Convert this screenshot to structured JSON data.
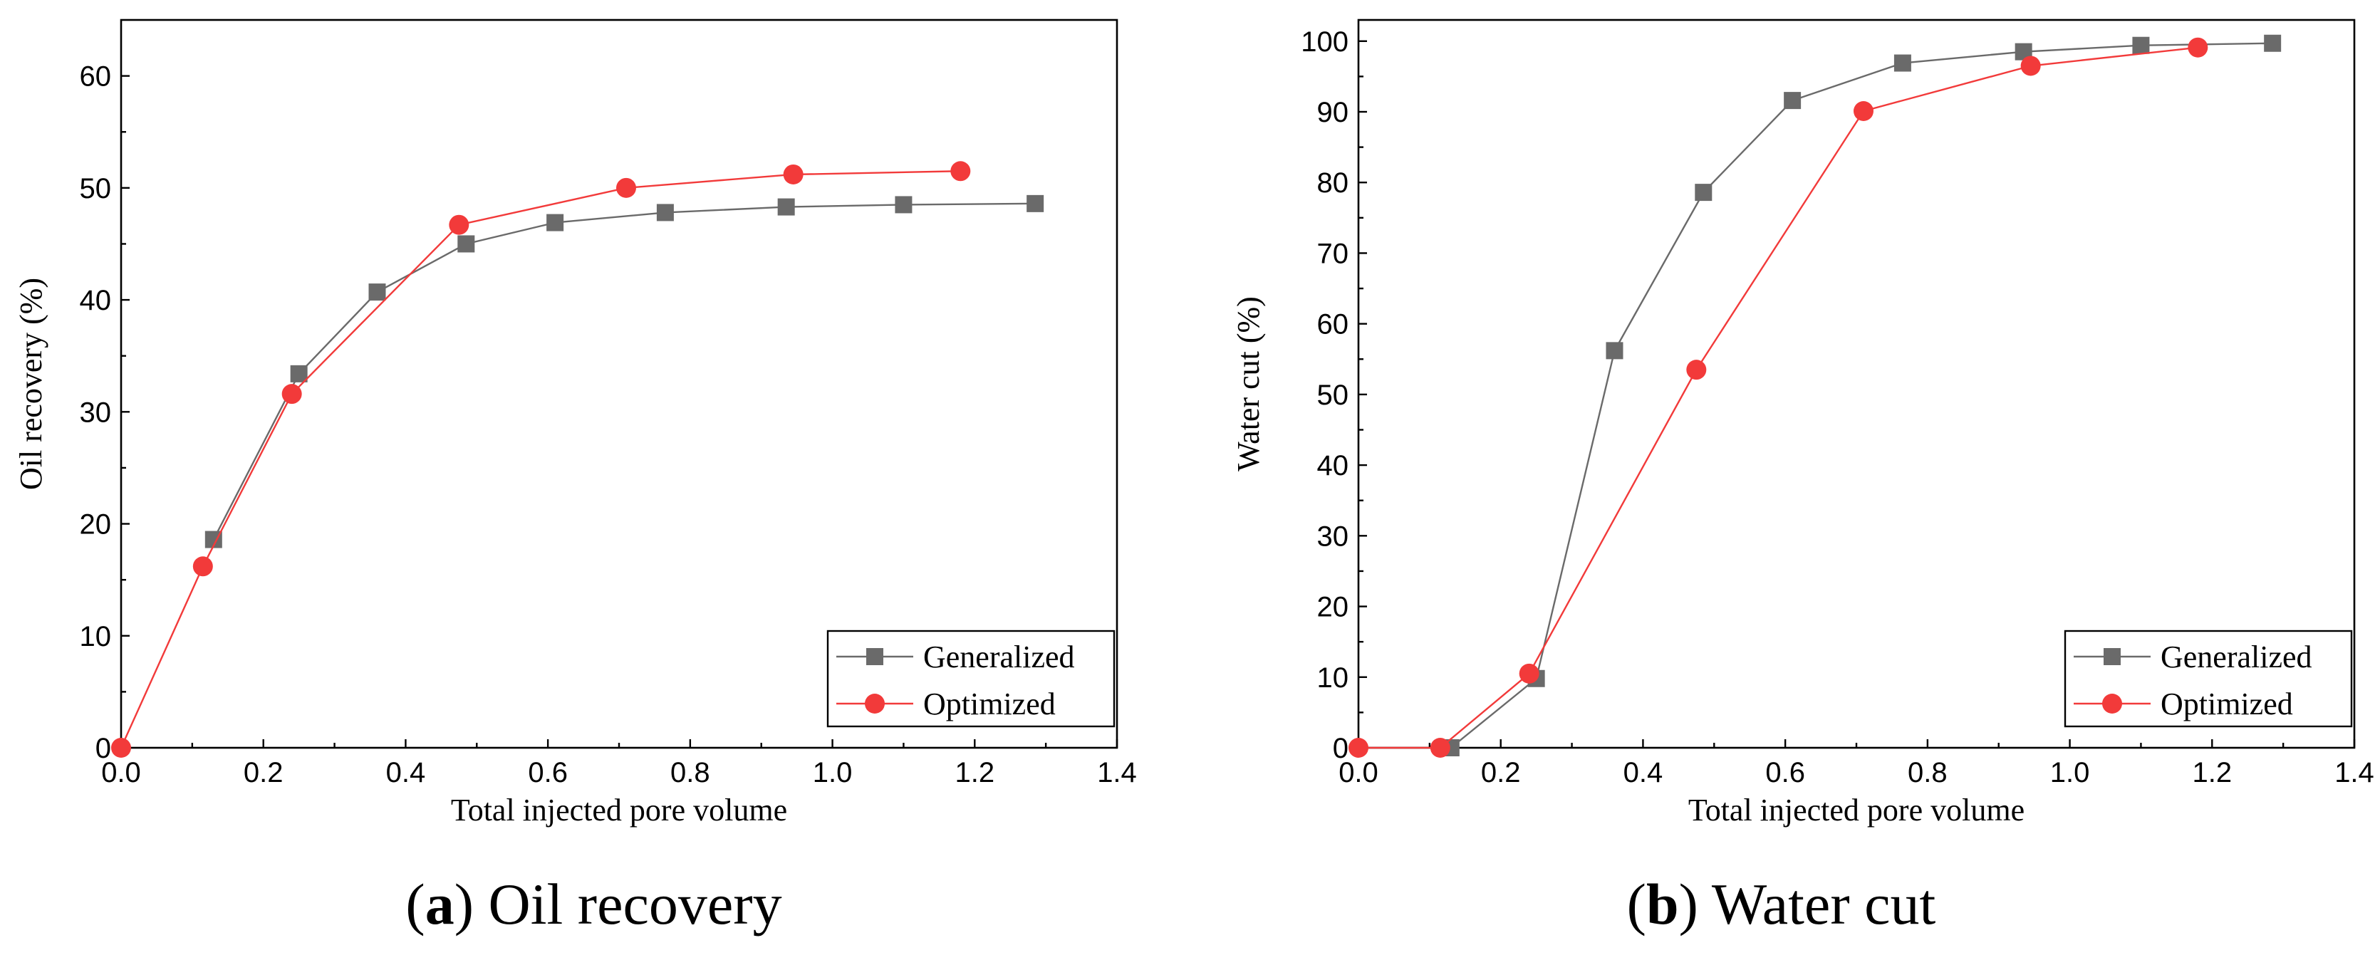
{
  "chart_data": [
    {
      "type": "line",
      "panel_label": "a",
      "caption": "Oil recovery",
      "title": "",
      "xlabel": "Total injected pore volume",
      "ylabel": "Oil recovery (%)",
      "xlim": [
        0,
        1.4
      ],
      "ylim": [
        0,
        65
      ],
      "xticks": [
        0.0,
        0.2,
        0.4,
        0.6,
        0.8,
        1.0,
        1.2,
        1.4
      ],
      "xtick_labels": [
        "0.0",
        "0.2",
        "0.4",
        "0.6",
        "0.8",
        "1.0",
        "1.2",
        "1.4"
      ],
      "yticks": [
        0,
        10,
        20,
        30,
        40,
        50,
        60
      ],
      "ytick_labels": [
        "0",
        "10",
        "20",
        "30",
        "40",
        "50",
        "60"
      ],
      "legend_position": "bottom-right",
      "grid": false,
      "series": [
        {
          "name": "Generalized",
          "color": "#6a6a6a",
          "marker": "square",
          "x": [
            0.13,
            0.25,
            0.36,
            0.485,
            0.61,
            0.765,
            0.935,
            1.1,
            1.285
          ],
          "y": [
            18.6,
            33.4,
            40.7,
            45.0,
            46.9,
            47.8,
            48.3,
            48.5,
            48.6
          ]
        },
        {
          "name": "Optimized",
          "color": "#f23a3a",
          "marker": "circle",
          "x": [
            0.0,
            0.115,
            0.24,
            0.475,
            0.71,
            0.945,
            1.18
          ],
          "y": [
            0.0,
            16.2,
            31.6,
            46.7,
            50.0,
            51.2,
            51.5
          ]
        }
      ]
    },
    {
      "type": "line",
      "panel_label": "b",
      "caption": "Water cut",
      "title": "",
      "xlabel": "Total injected pore volume",
      "ylabel": "Water cut (%)",
      "xlim": [
        0,
        1.4
      ],
      "ylim": [
        0,
        103
      ],
      "xticks": [
        0.0,
        0.2,
        0.4,
        0.6,
        0.8,
        1.0,
        1.2,
        1.4
      ],
      "xtick_labels": [
        "0.0",
        "0.2",
        "0.4",
        "0.6",
        "0.8",
        "1.0",
        "1.2",
        "1.4"
      ],
      "yticks": [
        0,
        10,
        20,
        30,
        40,
        50,
        60,
        70,
        80,
        90,
        100
      ],
      "ytick_labels": [
        "0",
        "10",
        "20",
        "30",
        "40",
        "50",
        "60",
        "70",
        "80",
        "90",
        "100"
      ],
      "legend_position": "bottom-right",
      "grid": false,
      "series": [
        {
          "name": "Generalized",
          "color": "#6a6a6a",
          "marker": "square",
          "x": [
            0.13,
            0.25,
            0.36,
            0.485,
            0.61,
            0.765,
            0.935,
            1.1,
            1.285
          ],
          "y": [
            0.0,
            9.8,
            56.2,
            78.6,
            91.6,
            96.9,
            98.5,
            99.4,
            99.7
          ]
        },
        {
          "name": "Optimized",
          "color": "#f23a3a",
          "marker": "circle",
          "x": [
            0.0,
            0.115,
            0.24,
            0.475,
            0.71,
            0.945,
            1.18
          ],
          "y": [
            0.0,
            0.0,
            10.5,
            53.5,
            90.1,
            96.5,
            99.1
          ]
        }
      ]
    }
  ]
}
